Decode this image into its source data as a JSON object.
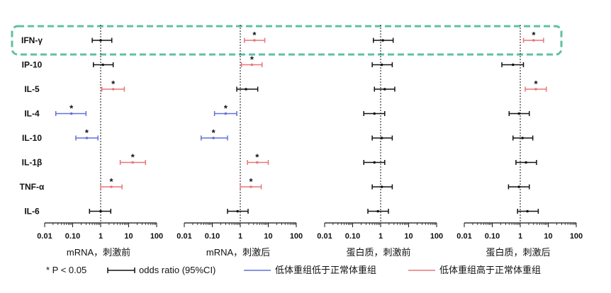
{
  "colors": {
    "higher": "#e8757a",
    "lower": "#6070d8",
    "neutral": "#111111",
    "highlight_border": "#5fc0a5"
  },
  "significance_mark": "*",
  "legend": {
    "sig_label": "* P < 0.05",
    "ci_label": "odds ratio (95%CI)",
    "lower_label": "低体重组低于正常体重组",
    "higher_label": "低体重组高于正常体重组"
  },
  "highlight_row": "IFN-γ",
  "chart_data": {
    "type": "forest",
    "x_scale": "log",
    "reference_line": 1,
    "xlim": [
      0.01,
      100
    ],
    "x_ticks": [
      "0.01",
      "0.10",
      "1",
      "10",
      "100"
    ],
    "rows": [
      "IFN-γ",
      "IP-10",
      "IL-5",
      "IL-4",
      "IL-10",
      "IL-1β",
      "TNF-α",
      "IL-6"
    ],
    "panels": [
      {
        "title": "mRNA，刺激前",
        "points": [
          {
            "or": 1.0,
            "lo": 0.5,
            "hi": 2.5,
            "sig": false,
            "dir": "neutral"
          },
          {
            "or": 1.2,
            "lo": 0.55,
            "hi": 2.8,
            "sig": false,
            "dir": "neutral"
          },
          {
            "or": 2.8,
            "lo": 1.1,
            "hi": 7.0,
            "sig": true,
            "dir": "higher"
          },
          {
            "or": 0.09,
            "lo": 0.025,
            "hi": 0.3,
            "sig": true,
            "dir": "lower"
          },
          {
            "or": 0.32,
            "lo": 0.13,
            "hi": 0.8,
            "sig": true,
            "dir": "lower"
          },
          {
            "or": 14.0,
            "lo": 5.0,
            "hi": 40.0,
            "sig": true,
            "dir": "higher"
          },
          {
            "or": 2.4,
            "lo": 1.0,
            "hi": 5.8,
            "sig": true,
            "dir": "higher"
          },
          {
            "or": 1.0,
            "lo": 0.4,
            "hi": 2.3,
            "sig": false,
            "dir": "neutral"
          }
        ]
      },
      {
        "title": "mRNA，刺激后",
        "points": [
          {
            "or": 3.2,
            "lo": 1.4,
            "hi": 7.5,
            "sig": true,
            "dir": "higher"
          },
          {
            "or": 2.6,
            "lo": 1.1,
            "hi": 6.0,
            "sig": true,
            "dir": "higher"
          },
          {
            "or": 1.6,
            "lo": 0.75,
            "hi": 4.2,
            "sig": false,
            "dir": "neutral"
          },
          {
            "or": 0.3,
            "lo": 0.12,
            "hi": 0.75,
            "sig": true,
            "dir": "lower"
          },
          {
            "or": 0.11,
            "lo": 0.04,
            "hi": 0.35,
            "sig": true,
            "dir": "lower"
          },
          {
            "or": 4.0,
            "lo": 1.8,
            "hi": 10.0,
            "sig": true,
            "dir": "higher"
          },
          {
            "or": 2.4,
            "lo": 1.0,
            "hi": 5.6,
            "sig": true,
            "dir": "higher"
          },
          {
            "or": 0.8,
            "lo": 0.35,
            "hi": 1.9,
            "sig": false,
            "dir": "neutral"
          }
        ]
      },
      {
        "title": "蛋白质，刺激前",
        "points": [
          {
            "or": 1.2,
            "lo": 0.55,
            "hi": 2.8,
            "sig": false,
            "dir": "neutral"
          },
          {
            "or": 1.1,
            "lo": 0.5,
            "hi": 2.6,
            "sig": false,
            "dir": "neutral"
          },
          {
            "or": 1.4,
            "lo": 0.6,
            "hi": 3.2,
            "sig": false,
            "dir": "neutral"
          },
          {
            "or": 0.6,
            "lo": 0.25,
            "hi": 1.4,
            "sig": false,
            "dir": "neutral"
          },
          {
            "or": 1.1,
            "lo": 0.5,
            "hi": 2.6,
            "sig": false,
            "dir": "neutral"
          },
          {
            "or": 0.6,
            "lo": 0.25,
            "hi": 1.4,
            "sig": false,
            "dir": "neutral"
          },
          {
            "or": 1.1,
            "lo": 0.5,
            "hi": 2.6,
            "sig": false,
            "dir": "neutral"
          },
          {
            "or": 0.8,
            "lo": 0.35,
            "hi": 1.9,
            "sig": false,
            "dir": "neutral"
          }
        ]
      },
      {
        "title": "蛋白质，刺激后",
        "points": [
          {
            "or": 3.0,
            "lo": 1.3,
            "hi": 6.8,
            "sig": true,
            "dir": "higher"
          },
          {
            "or": 0.55,
            "lo": 0.22,
            "hi": 1.3,
            "sig": false,
            "dir": "neutral"
          },
          {
            "or": 3.6,
            "lo": 1.5,
            "hi": 8.5,
            "sig": true,
            "dir": "higher"
          },
          {
            "or": 0.9,
            "lo": 0.4,
            "hi": 2.1,
            "sig": false,
            "dir": "neutral"
          },
          {
            "or": 1.2,
            "lo": 0.55,
            "hi": 2.8,
            "sig": false,
            "dir": "neutral"
          },
          {
            "or": 1.6,
            "lo": 0.7,
            "hi": 3.8,
            "sig": false,
            "dir": "neutral"
          },
          {
            "or": 0.9,
            "lo": 0.38,
            "hi": 2.1,
            "sig": false,
            "dir": "neutral"
          },
          {
            "or": 1.8,
            "lo": 0.8,
            "hi": 4.4,
            "sig": false,
            "dir": "neutral"
          }
        ]
      }
    ]
  }
}
